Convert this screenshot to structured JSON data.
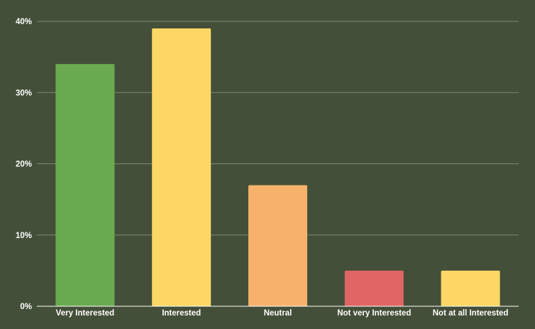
{
  "chart_data": {
    "type": "bar",
    "title": "",
    "xlabel": "",
    "ylabel": "",
    "categories": [
      "Very Interested",
      "Interested",
      "Neutral",
      "Not very Interested",
      "Not at all Interested"
    ],
    "values": [
      34,
      39,
      17,
      5,
      5
    ],
    "value_unit": "%",
    "ylim": [
      0,
      40
    ],
    "yticks": [
      0,
      10,
      20,
      30,
      40
    ],
    "ytick_labels": [
      "0%",
      "10%",
      "20%",
      "30%",
      "40%"
    ],
    "grid": true,
    "legend": "none",
    "colors": {
      "background": "#444f39",
      "grid": "#7d8872",
      "bars": [
        "#6aab4f",
        "#fdd766",
        "#f6b26b",
        "#e06666",
        "#fdd766"
      ]
    }
  }
}
